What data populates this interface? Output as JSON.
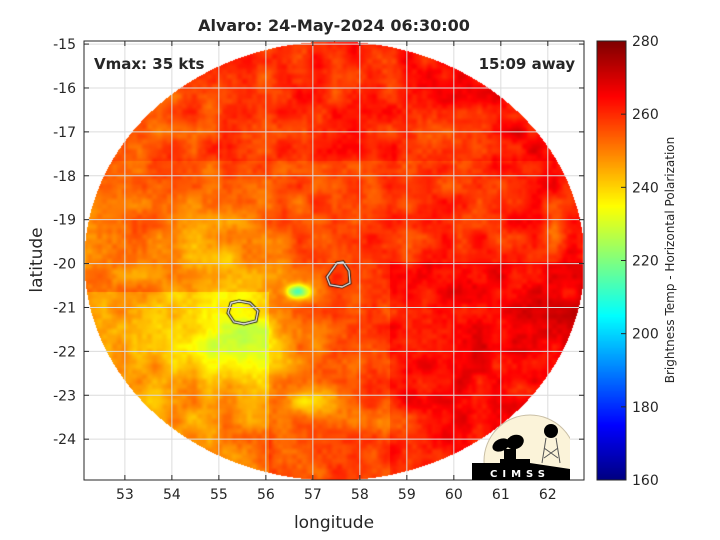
{
  "chart_data": {
    "type": "heatmap",
    "title": "Alvaro: 24-May-2024 06:30:00",
    "xlabel": "longitude",
    "ylabel": "latitude",
    "xlim": [
      52.13,
      62.77
    ],
    "ylim": [
      -24.93,
      -14.93
    ],
    "xticks": [
      "53",
      "54",
      "55",
      "56",
      "57",
      "58",
      "59",
      "60",
      "61",
      "62"
    ],
    "yticks": [
      "-15",
      "-16",
      "-17",
      "-18",
      "-19",
      "-20",
      "-21",
      "-22",
      "-23",
      "-24"
    ],
    "grid": true,
    "colormap": "jet",
    "clim": [
      160,
      280
    ],
    "colorbar_label": "Brightness Temp - Horizontal Polarization",
    "colorbar_ticks": [
      "160",
      "180",
      "200",
      "220",
      "240",
      "260",
      "280"
    ],
    "annotations": {
      "vmax": "Vmax: 35 kts",
      "time_away": "15:09 away"
    },
    "swath_center": [
      57.45,
      -19.93
    ],
    "typical_value_range": [
      205,
      270
    ]
  },
  "logo": {
    "text": "CIMSS"
  }
}
